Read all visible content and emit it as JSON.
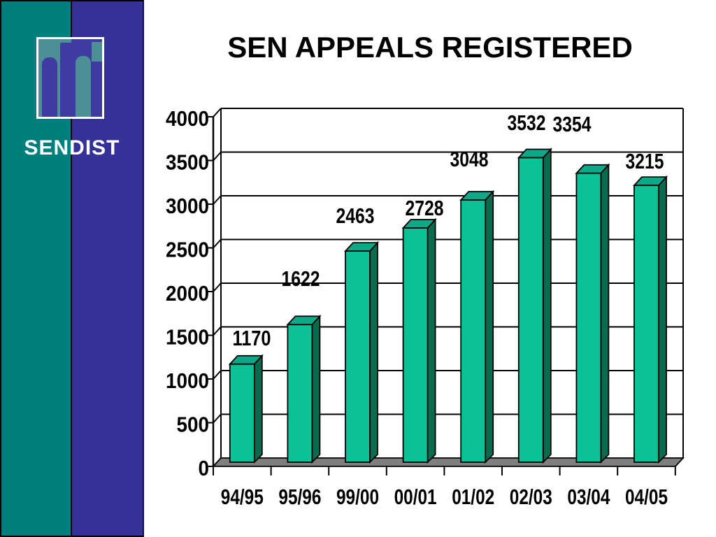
{
  "slide": {
    "title": "SEN APPEALS REGISTERED",
    "sidebar": {
      "brand": "SENDIST",
      "teal_color": "#007F7C",
      "blue_color": "#343199",
      "logo_teal": "#4E8E96",
      "logo_purple": "#3E3BA2"
    }
  },
  "chart_data": {
    "type": "bar",
    "style": "3d-column",
    "title": "SEN APPEALS REGISTERED",
    "categories": [
      "94/95",
      "95/96",
      "99/00",
      "00/01",
      "01/02",
      "02/03",
      "03/04",
      "04/05"
    ],
    "values": [
      1170,
      1622,
      2463,
      2728,
      3048,
      3532,
      3354,
      3215
    ],
    "data_labels": [
      "1170",
      "1622",
      "2463",
      "2728",
      "3048",
      "3532",
      "3354",
      "3215"
    ],
    "xlabel": "",
    "ylabel": "",
    "ylim": [
      0,
      4000
    ],
    "ytick_step": 500,
    "ytick_labels": [
      "0",
      "500",
      "1000",
      "1500",
      "2000",
      "2500",
      "3000",
      "3500",
      "4000"
    ],
    "grid": true,
    "legend": false,
    "colors": {
      "bar_front": "#0BC296",
      "bar_top": "#0BA987",
      "bar_side": "#0A6B4F",
      "floor": "#7F7F7F",
      "outline": "#000000",
      "text": "#000000"
    }
  }
}
